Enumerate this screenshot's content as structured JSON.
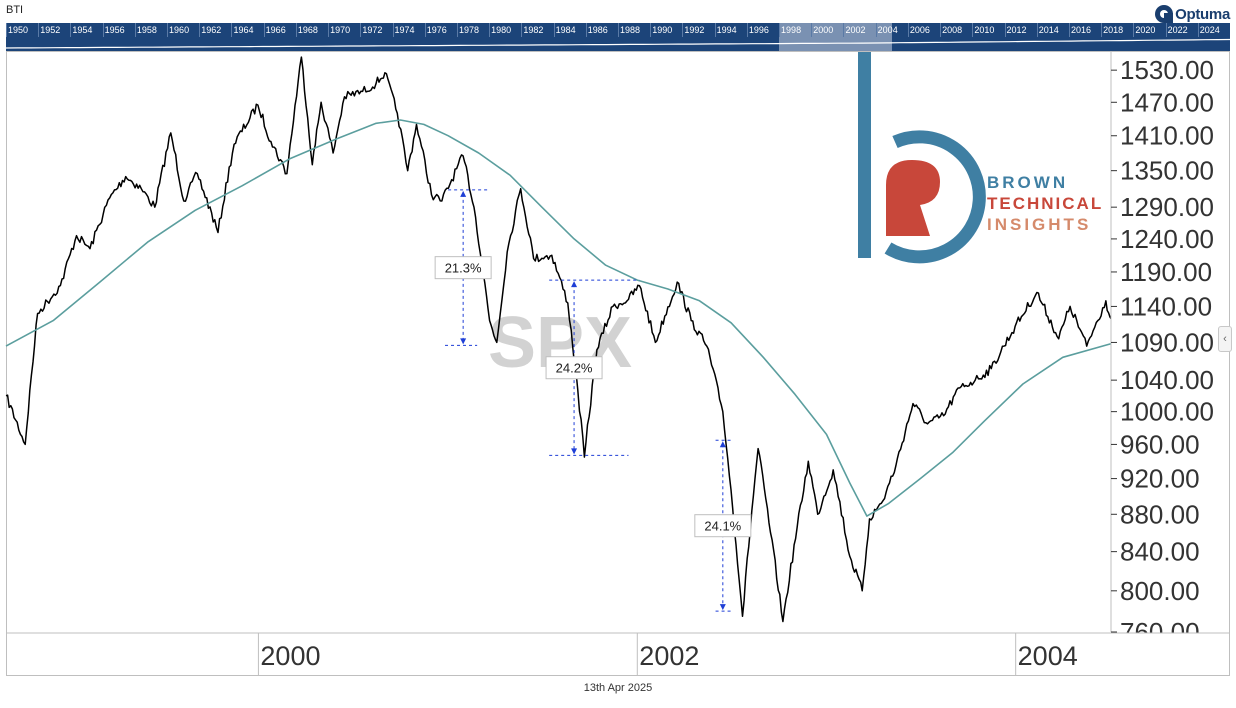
{
  "header": {
    "chart_name": "BTI",
    "brand": "Optuma"
  },
  "navigator": {
    "years": [
      "1950",
      "1952",
      "1954",
      "1956",
      "1958",
      "1960",
      "1962",
      "1964",
      "1966",
      "1968",
      "1970",
      "1972",
      "1974",
      "1976",
      "1978",
      "1980",
      "1982",
      "1984",
      "1986",
      "1988",
      "1990",
      "1992",
      "1994",
      "1996",
      "1998",
      "2000",
      "2002",
      "2004",
      "2006",
      "2008",
      "2010",
      "2012",
      "2014",
      "2016",
      "2018",
      "2020",
      "2022",
      "2024"
    ],
    "selected_from": 1998,
    "selected_to": 2005
  },
  "watermark": "SPX",
  "brand_block": {
    "line1": "BROWN",
    "line2": "TECHNICAL",
    "line3": "INSIGHTS",
    "colors": {
      "blue": "#3f7fa3",
      "red": "#c8473a",
      "tan": "#d58a6b"
    }
  },
  "footer": {
    "date": "13th Apr 2025"
  },
  "chart_data": {
    "type": "line",
    "title": "",
    "xlabel": "",
    "ylabel": "",
    "x_ticks": [
      "2000",
      "2002",
      "2004"
    ],
    "y_ticks": [
      "1530.00",
      "1470.00",
      "1410.00",
      "1350.00",
      "1290.00",
      "1240.00",
      "1190.00",
      "1140.00",
      "1090.00",
      "1040.00",
      "1000.00",
      "960.00",
      "920.00",
      "880.00",
      "840.00",
      "800.00",
      "760.00"
    ],
    "ylim": [
      760,
      1565
    ],
    "xlim": [
      "1998-09",
      "2004-07"
    ],
    "grid": false,
    "series": [
      {
        "color": "#000000",
        "points": [
          [
            "1998-09-01",
            1020
          ],
          [
            "1998-10-08",
            960
          ],
          [
            "1998-11-01",
            1130
          ],
          [
            "1998-12-15",
            1170
          ],
          [
            "1999-01-15",
            1245
          ],
          [
            "1999-02-10",
            1225
          ],
          [
            "1999-03-20",
            1305
          ],
          [
            "1999-04-20",
            1340
          ],
          [
            "1999-05-20",
            1320
          ],
          [
            "1999-06-15",
            1290
          ],
          [
            "1999-07-16",
            1415
          ],
          [
            "1999-08-10",
            1300
          ],
          [
            "1999-09-05",
            1345
          ],
          [
            "1999-10-15",
            1250
          ],
          [
            "1999-11-15",
            1395
          ],
          [
            "1999-12-31",
            1465
          ],
          [
            "2000-01-25",
            1400
          ],
          [
            "2000-02-25",
            1345
          ],
          [
            "2000-03-24",
            1555
          ],
          [
            "2000-04-14",
            1360
          ],
          [
            "2000-05-01",
            1470
          ],
          [
            "2000-05-24",
            1380
          ],
          [
            "2000-06-15",
            1480
          ],
          [
            "2000-07-20",
            1490
          ],
          [
            "2000-08-15",
            1505
          ],
          [
            "2000-09-01",
            1525
          ],
          [
            "2000-09-25",
            1450
          ],
          [
            "2000-10-15",
            1350
          ],
          [
            "2000-11-01",
            1430
          ],
          [
            "2000-11-30",
            1310
          ],
          [
            "2000-12-20",
            1300
          ],
          [
            "2001-01-30",
            1375
          ],
          [
            "2001-02-20",
            1290
          ],
          [
            "2001-03-22",
            1120
          ],
          [
            "2001-04-05",
            1090
          ],
          [
            "2001-04-25",
            1220
          ],
          [
            "2001-05-21",
            1320
          ],
          [
            "2001-06-15",
            1210
          ],
          [
            "2001-07-20",
            1215
          ],
          [
            "2001-08-20",
            1145
          ],
          [
            "2001-09-21",
            945
          ],
          [
            "2001-10-15",
            1080
          ],
          [
            "2001-11-15",
            1140
          ],
          [
            "2001-12-15",
            1150
          ],
          [
            "2002-01-05",
            1170
          ],
          [
            "2002-02-05",
            1090
          ],
          [
            "2002-03-19",
            1175
          ],
          [
            "2002-04-15",
            1120
          ],
          [
            "2002-05-15",
            1085
          ],
          [
            "2002-06-15",
            1000
          ],
          [
            "2002-07-23",
            775
          ],
          [
            "2002-08-22",
            955
          ],
          [
            "2002-09-15",
            860
          ],
          [
            "2002-10-09",
            770
          ],
          [
            "2002-11-27",
            940
          ],
          [
            "2002-12-15",
            880
          ],
          [
            "2003-01-14",
            930
          ],
          [
            "2003-02-15",
            835
          ],
          [
            "2003-03-11",
            800
          ],
          [
            "2003-03-25",
            875
          ],
          [
            "2003-04-20",
            895
          ],
          [
            "2003-05-15",
            935
          ],
          [
            "2003-06-17",
            1010
          ],
          [
            "2003-07-15",
            985
          ],
          [
            "2003-08-15",
            995
          ],
          [
            "2003-09-15",
            1030
          ],
          [
            "2003-10-15",
            1040
          ],
          [
            "2003-11-15",
            1055
          ],
          [
            "2003-12-31",
            1112
          ],
          [
            "2004-02-11",
            1160
          ],
          [
            "2004-03-24",
            1095
          ],
          [
            "2004-04-15",
            1140
          ],
          [
            "2004-05-17",
            1085
          ],
          [
            "2004-06-23",
            1148
          ],
          [
            "2004-07-01",
            1125
          ],
          [
            "2004-07-12",
            1108
          ]
        ]
      },
      {
        "color": "#5b9e9e",
        "points": [
          [
            "1998-09-01",
            1085
          ],
          [
            "1998-12-01",
            1120
          ],
          [
            "1999-03-01",
            1175
          ],
          [
            "1999-06-01",
            1235
          ],
          [
            "1999-09-01",
            1285
          ],
          [
            "1999-12-01",
            1325
          ],
          [
            "2000-03-01",
            1370
          ],
          [
            "2000-06-01",
            1405
          ],
          [
            "2000-08-15",
            1432
          ],
          [
            "2000-10-01",
            1438
          ],
          [
            "2000-11-15",
            1430
          ],
          [
            "2001-01-01",
            1410
          ],
          [
            "2001-03-01",
            1380
          ],
          [
            "2001-05-01",
            1342
          ],
          [
            "2001-07-01",
            1290
          ],
          [
            "2001-09-01",
            1240
          ],
          [
            "2001-11-01",
            1200
          ],
          [
            "2002-01-01",
            1178
          ],
          [
            "2002-03-01",
            1165
          ],
          [
            "2002-05-01",
            1148
          ],
          [
            "2002-07-01",
            1117
          ],
          [
            "2002-09-01",
            1070
          ],
          [
            "2002-11-01",
            1022
          ],
          [
            "2003-01-01",
            972
          ],
          [
            "2003-02-15",
            915
          ],
          [
            "2003-03-20",
            878
          ],
          [
            "2003-05-01",
            892
          ],
          [
            "2003-07-01",
            920
          ],
          [
            "2003-09-01",
            950
          ],
          [
            "2003-11-01",
            988
          ],
          [
            "2004-01-15",
            1035
          ],
          [
            "2004-04-01",
            1070
          ],
          [
            "2004-07-12",
            1090
          ]
        ]
      }
    ],
    "drawdowns": [
      {
        "label": "21.3%",
        "top_date": "2001-01-30",
        "top_value": 1318,
        "bottom_value": 1086,
        "line_from": "2001-01-01",
        "line_to": "2001-03-20",
        "bottom_from": "2000-12-26",
        "bottom_to": "2001-02-26"
      },
      {
        "label": "24.2%",
        "top_date": "2001-09-01",
        "top_value": 1178,
        "bottom_value": 947,
        "line_from": "2001-07-15",
        "line_to": "2002-01-05",
        "bottom_from": "2001-07-15",
        "bottom_to": "2001-12-15"
      },
      {
        "label": "24.1%",
        "top_date": "2002-06-15",
        "top_value": 965,
        "bottom_value": 780,
        "line_from": "2002-06-01",
        "line_to": "2002-07-01",
        "bottom_from": "2002-06-01",
        "bottom_to": "2002-07-01"
      }
    ]
  }
}
